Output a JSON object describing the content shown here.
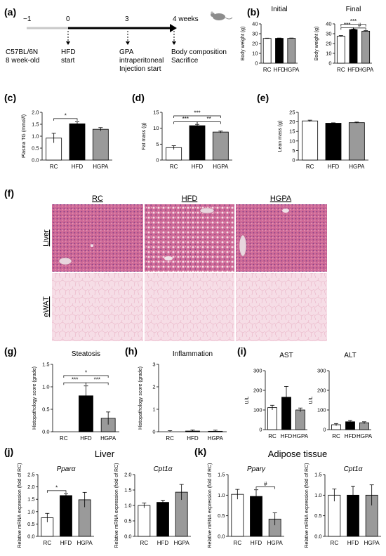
{
  "colors": {
    "rc": "#ffffff",
    "hfd": "#000000",
    "hgpa": "#9a9a9a",
    "liver": "#cf6a97",
    "ewat": "#f6dde6"
  },
  "groups": [
    "RC",
    "HFD",
    "HGPA"
  ],
  "panels": [
    {
      "key": "a",
      "label": "(a)"
    },
    {
      "key": "b",
      "label": "(b)"
    },
    {
      "key": "c",
      "label": "(c)"
    },
    {
      "key": "d",
      "label": "(d)"
    },
    {
      "key": "e",
      "label": "(e)"
    },
    {
      "key": "f",
      "label": "(f)"
    },
    {
      "key": "g",
      "label": "(g)"
    },
    {
      "key": "h",
      "label": "(h)"
    },
    {
      "key": "i",
      "label": "(i)"
    },
    {
      "key": "j",
      "label": "(j)"
    },
    {
      "key": "k",
      "label": "(k)"
    }
  ],
  "timeline": {
    "ticks": [
      {
        "label": "−1",
        "lines": [
          "C57BL/6N",
          "8 week-old"
        ]
      },
      {
        "label": "0",
        "lines": [
          "HFD",
          "start"
        ]
      },
      {
        "label": "3",
        "lines": [
          "GPA",
          "intraperitoneal",
          "Injection start"
        ]
      },
      {
        "label": "4 weeks",
        "lines": [
          "Body composition",
          "Sacrifice"
        ]
      }
    ],
    "mouse_icon": "mouse-icon"
  },
  "histology": {
    "columns": [
      "RC",
      "HFD",
      "HGPA"
    ],
    "rows": [
      "Liver",
      "eWAT"
    ]
  },
  "group_titles": {
    "j": "Liver",
    "k": "Adipose tissue"
  },
  "chart_data": [
    {
      "id": "b1",
      "type": "bar",
      "title": "Initial",
      "ylabel": "Body weight (g)",
      "categories": [
        "RC",
        "HFD",
        "HGPA"
      ],
      "values": [
        25.2,
        25.3,
        25.3
      ],
      "errors": [
        0.3,
        0.3,
        0.3
      ],
      "ylim": [
        0,
        40
      ],
      "yticks": [
        "0",
        "10",
        "20",
        "30",
        "40"
      ],
      "sig": []
    },
    {
      "id": "b2",
      "type": "bar",
      "title": "Final",
      "ylabel": "Body weight (g)",
      "categories": [
        "RC",
        "HFD",
        "HGPA"
      ],
      "values": [
        27.5,
        34.2,
        32.6
      ],
      "errors": [
        0.6,
        0.6,
        0.5
      ],
      "ylim": [
        0,
        40
      ],
      "yticks": [
        "0",
        "10",
        "20",
        "30",
        "40"
      ],
      "sig": [
        {
          "from": 0,
          "to": 1,
          "level": 36.2,
          "label": "***"
        },
        {
          "from": 1,
          "to": 2,
          "level": 35.8,
          "label": "#"
        },
        {
          "from": 0,
          "to": 2,
          "level": 39.5,
          "label": "***"
        }
      ]
    },
    {
      "id": "c",
      "type": "bar",
      "title": "",
      "ylabel": "Plasma TG (mmol/l)",
      "categories": [
        "RC",
        "HFD",
        "HGPA"
      ],
      "values": [
        0.92,
        1.52,
        1.29
      ],
      "errors": [
        0.2,
        0.08,
        0.07
      ],
      "ylim": [
        0,
        2
      ],
      "yticks": [
        "0.0",
        "0.5",
        "1.0",
        "1.5",
        "2.0"
      ],
      "sig": [
        {
          "from": 0,
          "to": 1,
          "level": 1.74,
          "label": "*"
        }
      ]
    },
    {
      "id": "d",
      "type": "bar",
      "title": "",
      "ylabel": "Fat mass (g)",
      "categories": [
        "RC",
        "HFD",
        "HGPA"
      ],
      "values": [
        3.9,
        10.8,
        8.8
      ],
      "errors": [
        0.6,
        0.4,
        0.3
      ],
      "ylim": [
        0,
        15
      ],
      "yticks": [
        "0",
        "5",
        "10",
        "15"
      ],
      "sig": [
        {
          "from": 0,
          "to": 1,
          "level": 12.0,
          "label": "***"
        },
        {
          "from": 1,
          "to": 2,
          "level": 12.0,
          "label": "**"
        },
        {
          "from": 0,
          "to": 2,
          "level": 13.9,
          "label": "***"
        }
      ]
    },
    {
      "id": "e",
      "type": "bar",
      "title": "",
      "ylabel": "Lean mass (g)",
      "categories": [
        "RC",
        "HFD",
        "HGPA"
      ],
      "values": [
        20.5,
        19.3,
        19.6
      ],
      "errors": [
        0.4,
        0.2,
        0.3
      ],
      "ylim": [
        0,
        25
      ],
      "yticks": [
        "0",
        "5",
        "10",
        "15",
        "20",
        "25"
      ],
      "sig": []
    },
    {
      "id": "g",
      "type": "bar",
      "title": "Steatosis",
      "ylabel": "Histopathology score (grade)",
      "categories": [
        "RC",
        "HFD",
        "HGPA"
      ],
      "values": [
        0.0,
        0.8,
        0.3
      ],
      "errors": [
        0.0,
        0.22,
        0.14
      ],
      "ylim": [
        0,
        1.5
      ],
      "yticks": [
        "0.0",
        "0.5",
        "1.0",
        "1.5"
      ],
      "sig": [
        {
          "from": 0,
          "to": 1,
          "level": 1.09,
          "label": "***"
        },
        {
          "from": 1,
          "to": 2,
          "level": 1.09,
          "label": "***"
        },
        {
          "from": 0,
          "to": 2,
          "level": 1.25,
          "label": "*"
        }
      ]
    },
    {
      "id": "h",
      "type": "bar",
      "title": "Inflammation",
      "ylabel": "Histopathology score (grade)",
      "categories": [
        "RC",
        "HFD",
        "HGPA"
      ],
      "values": [
        0.0,
        0.03,
        0.02
      ],
      "errors": [
        0.05,
        0.05,
        0.05
      ],
      "ylim": [
        0,
        3
      ],
      "yticks": [
        "0",
        "1",
        "2",
        "3"
      ],
      "sig": []
    },
    {
      "id": "i1",
      "type": "bar",
      "title": "AST",
      "ylabel": "U/L",
      "categories": [
        "RC",
        "HFD",
        "HGPA"
      ],
      "values": [
        112,
        165,
        100
      ],
      "errors": [
        12,
        55,
        10
      ],
      "ylim": [
        0,
        300
      ],
      "yticks": [
        "0",
        "100",
        "200",
        "300"
      ],
      "sig": []
    },
    {
      "id": "i2",
      "type": "bar",
      "title": "ALT",
      "ylabel": "U/L",
      "categories": [
        "RC",
        "HFD",
        "HGPA"
      ],
      "values": [
        25,
        40,
        35
      ],
      "errors": [
        6,
        7,
        5
      ],
      "ylim": [
        0,
        300
      ],
      "yticks": [
        "0",
        "100",
        "200",
        "300"
      ],
      "sig": []
    },
    {
      "id": "j1",
      "type": "bar",
      "title": "Pparα",
      "ylabel": "Relative mRNA expression (fold of RC)",
      "categories": [
        "RC",
        "HFD",
        "HGPA"
      ],
      "values": [
        0.75,
        1.65,
        1.48
      ],
      "errors": [
        0.18,
        0.08,
        0.3
      ],
      "ylim": [
        0,
        2.5
      ],
      "yticks": [
        "0.0",
        "0.5",
        "1.0",
        "1.5",
        "2.0",
        "2.5"
      ],
      "sig": [
        {
          "from": 0,
          "to": 1,
          "level": 1.85,
          "label": "*"
        }
      ]
    },
    {
      "id": "j2",
      "type": "bar",
      "title": "Cpt1α",
      "ylabel": "Relative mRNA expression (fold of RC)",
      "categories": [
        "RC",
        "HFD",
        "HGPA"
      ],
      "values": [
        1.0,
        1.1,
        1.43
      ],
      "errors": [
        0.08,
        0.07,
        0.25
      ],
      "ylim": [
        0,
        2.0
      ],
      "yticks": [
        "0.0",
        "0.5",
        "1.0",
        "1.5",
        "2.0"
      ],
      "sig": []
    },
    {
      "id": "k1",
      "type": "bar",
      "title": "Pparγ",
      "ylabel": "Relative mRNA expression (fold of RC)",
      "categories": [
        "RC",
        "HFD",
        "HGPA"
      ],
      "values": [
        1.02,
        0.97,
        0.42
      ],
      "errors": [
        0.12,
        0.16,
        0.15
      ],
      "ylim": [
        0,
        1.5
      ],
      "yticks": [
        "0.0",
        "0.5",
        "1.0",
        "1.5"
      ],
      "sig": [
        {
          "from": 1,
          "to": 2,
          "level": 1.2,
          "label": "#"
        }
      ]
    },
    {
      "id": "k2",
      "type": "bar",
      "title": "Cpt1α",
      "ylabel": "Relative mRNA expression (fold of RC)",
      "categories": [
        "RC",
        "HFD",
        "HGPA"
      ],
      "values": [
        1.0,
        1.0,
        1.0
      ],
      "errors": [
        0.15,
        0.22,
        0.25
      ],
      "ylim": [
        0,
        1.5
      ],
      "yticks": [
        "0.0",
        "0.5",
        "1.0",
        "1.5"
      ],
      "sig": []
    }
  ]
}
